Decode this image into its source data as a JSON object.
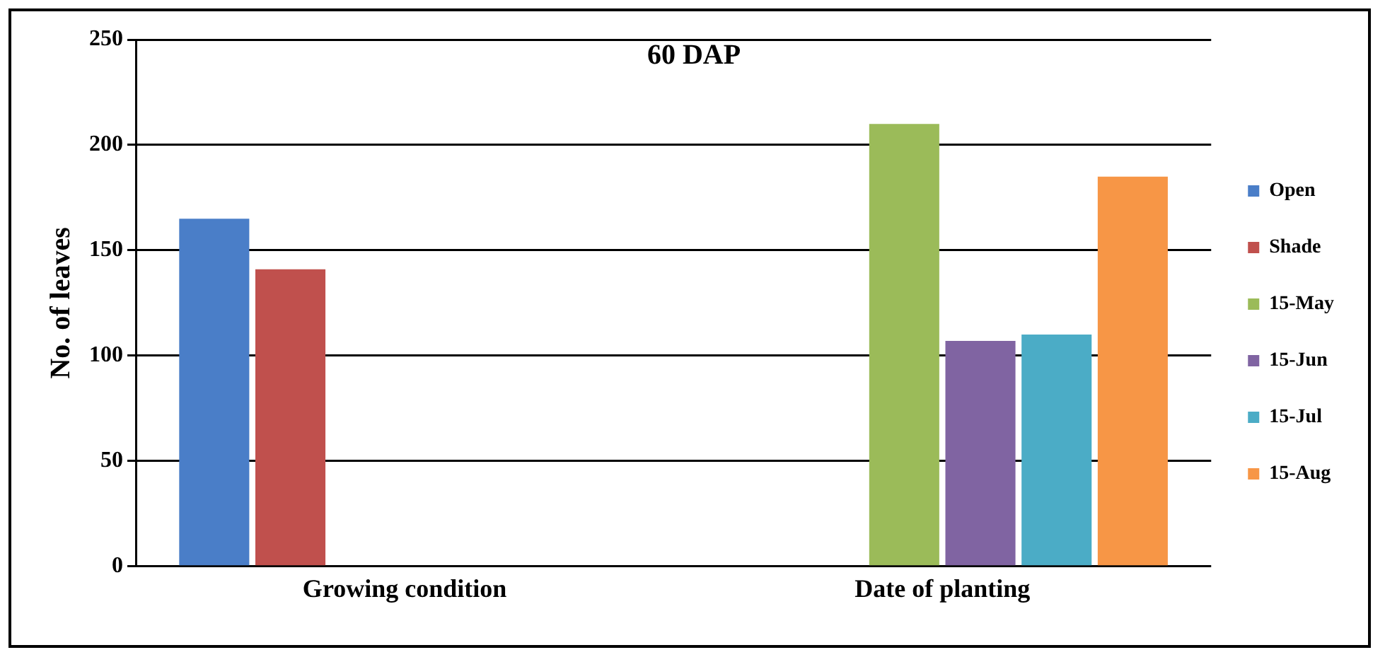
{
  "chart_data": {
    "type": "bar",
    "title": "60 DAP",
    "ylabel": "No. of leaves",
    "categories": [
      "Growing condition",
      "Date of planting"
    ],
    "series": [
      {
        "name": "Open",
        "color": "#4a7ec8",
        "values": [
          165,
          null
        ]
      },
      {
        "name": "Shade",
        "color": "#c0504d",
        "values": [
          141,
          null
        ]
      },
      {
        "name": "15-May",
        "color": "#9bbb59",
        "values": [
          null,
          210
        ]
      },
      {
        "name": "15-Jun",
        "color": "#8064a2",
        "values": [
          null,
          107
        ]
      },
      {
        "name": "15-Jul",
        "color": "#4bacc6",
        "values": [
          null,
          110
        ]
      },
      {
        "name": "15-Aug",
        "color": "#f79646",
        "values": [
          null,
          185
        ]
      }
    ],
    "ylim": [
      0,
      250
    ],
    "yticks": [
      0,
      50,
      100,
      150,
      200,
      250
    ],
    "grid": "y",
    "legend": "right"
  }
}
